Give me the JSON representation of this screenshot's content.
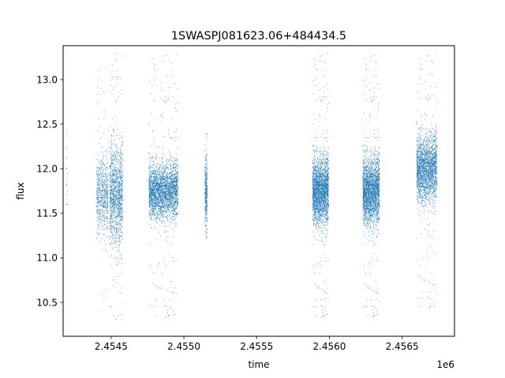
{
  "chart_data": {
    "type": "scatter",
    "title": "1SWASPJ081623.06+484434.5",
    "xlabel": "time",
    "ylabel": "flux",
    "x_offset_label": "1e6",
    "xlim": [
      2454170,
      2456860
    ],
    "ylim": [
      10.12,
      13.38
    ],
    "xticks": [
      2454500,
      2455000,
      2455500,
      2456000,
      2456500
    ],
    "xtick_labels": [
      "2.4545",
      "2.4550",
      "2.4555",
      "2.4560",
      "2.4565"
    ],
    "yticks": [
      10.5,
      11.0,
      11.5,
      12.0,
      12.5,
      13.0
    ],
    "ytick_labels": [
      "10.5",
      "11.0",
      "11.5",
      "12.0",
      "12.5",
      "13.0"
    ],
    "grid": false,
    "marker_color": "#1f77b4",
    "series": [
      {
        "observing_seasons": [
          {
            "x_range": [
              2454190,
              2454200
            ],
            "y_center": 11.9,
            "y_spread": 0.6,
            "y_extent": [
              11.6,
              13.1
            ],
            "count": 25
          },
          {
            "x_range": [
              2454400,
              2454480
            ],
            "y_center": 11.7,
            "y_spread": 0.35,
            "y_extent": [
              10.3,
              13.2
            ],
            "count": 700
          },
          {
            "x_range": [
              2454490,
              2454580
            ],
            "y_center": 11.7,
            "y_spread": 0.45,
            "y_extent": [
              10.3,
              13.3
            ],
            "count": 1400
          },
          {
            "x_range": [
              2454760,
              2454960
            ],
            "y_center": 11.75,
            "y_spread": 0.25,
            "y_extent": [
              10.3,
              13.3
            ],
            "count": 3500
          },
          {
            "x_range": [
              2455145,
              2455160
            ],
            "y_center": 11.75,
            "y_spread": 0.3,
            "y_extent": [
              11.2,
              12.4
            ],
            "count": 400
          },
          {
            "x_range": [
              2455885,
              2455995
            ],
            "y_center": 11.75,
            "y_spread": 0.3,
            "y_extent": [
              10.3,
              13.3
            ],
            "count": 2700
          },
          {
            "x_range": [
              2456230,
              2456345
            ],
            "y_center": 11.75,
            "y_spread": 0.3,
            "y_extent": [
              10.3,
              13.3
            ],
            "count": 2700
          },
          {
            "x_range": [
              2456600,
              2456740
            ],
            "y_center": 12.0,
            "y_spread": 0.3,
            "y_extent": [
              10.4,
              13.3
            ],
            "count": 2400
          }
        ]
      }
    ]
  }
}
